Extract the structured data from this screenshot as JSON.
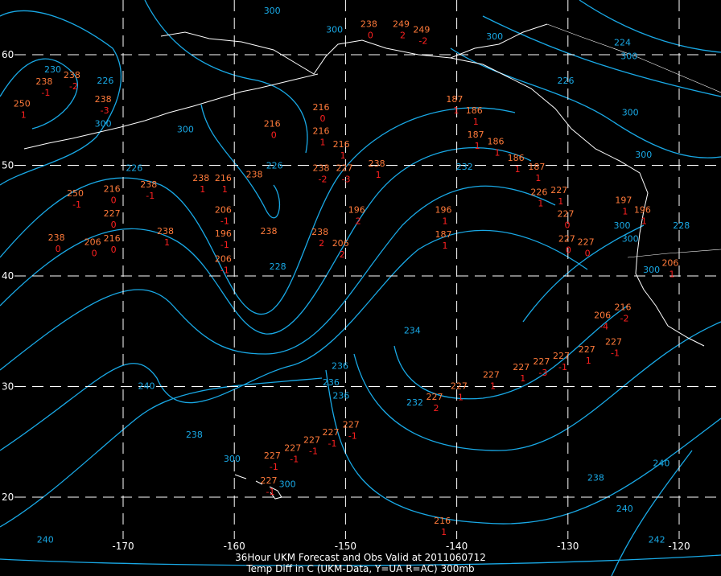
{
  "caption": {
    "line1": "36Hour UKM Forecast and Obs Valid at 2011060712",
    "line2": "Temp Diff in C (UKM-Data, Y=UA R=AC) 300mb"
  },
  "colors": {
    "background": "#000000",
    "contours": "#19a9e6",
    "obs_temp": "#ff7a3a",
    "obs_diff": "#ff2020",
    "coast": "#ffffff"
  },
  "lon_labels": [
    {
      "lon": -170,
      "text": "-170"
    },
    {
      "lon": -160,
      "text": "-160"
    },
    {
      "lon": -150,
      "text": "-150"
    },
    {
      "lon": -140,
      "text": "-140"
    },
    {
      "lon": -130,
      "text": "-130"
    },
    {
      "lon": -120,
      "text": "-120"
    }
  ],
  "lat_labels": [
    {
      "lat": 60,
      "text": "60"
    },
    {
      "lat": 50,
      "text": "50"
    },
    {
      "lat": 40,
      "text": "40"
    },
    {
      "lat": 30,
      "text": "30"
    },
    {
      "lat": 20,
      "text": "20"
    }
  ],
  "contour_labels": [
    {
      "lon": -175.9,
      "lat": 58.4,
      "text": "230"
    },
    {
      "lon": -171.6,
      "lat": 57.4,
      "text": "226"
    },
    {
      "lon": -171.8,
      "lat": 54.8,
      "text": "300"
    },
    {
      "lon": -164.4,
      "lat": 53.0,
      "text": "300"
    },
    {
      "lon": -169.0,
      "lat": 49.5,
      "text": "226"
    },
    {
      "lon": -156.6,
      "lat": 49.7,
      "text": "226"
    },
    {
      "lon": -156.1,
      "lat": 40.6,
      "text": "228"
    },
    {
      "lon": -139.3,
      "lat": 49.6,
      "text": "232"
    },
    {
      "lon": -144.0,
      "lat": 34.8,
      "text": "234"
    },
    {
      "lon": -150.5,
      "lat": 31.6,
      "text": "236"
    },
    {
      "lon": -151.3,
      "lat": 30.1,
      "text": "236"
    },
    {
      "lon": -150.4,
      "lat": 28.9,
      "text": "236"
    },
    {
      "lon": -142.9,
      "lat": 28.3,
      "text": "232"
    },
    {
      "lon": -167.9,
      "lat": 29.8,
      "text": "240"
    },
    {
      "lon": -163.6,
      "lat": 25.4,
      "text": "238"
    },
    {
      "lon": -127.5,
      "lat": 21.5,
      "text": "238"
    },
    {
      "lon": -124.9,
      "lat": 18.7,
      "text": "240"
    },
    {
      "lon": -177.0,
      "lat": 15.9,
      "text": "240"
    },
    {
      "lon": -121.8,
      "lat": 15.9,
      "text": "242"
    },
    {
      "lon": -121.6,
      "lat": 22.8,
      "text": "240"
    },
    {
      "lon": -119.8,
      "lat": 44.3,
      "text": "228"
    },
    {
      "lon": -160.2,
      "lat": 23.2,
      "text": "300"
    },
    {
      "lon": -156.1,
      "lat": 20.9,
      "text": "300"
    },
    {
      "lon": -151.0,
      "lat": 62.0,
      "text": "300"
    },
    {
      "lon": -136.6,
      "lat": 61.4,
      "text": "300"
    },
    {
      "lon": -124.5,
      "lat": 59.6,
      "text": "300"
    },
    {
      "lon": -124.4,
      "lat": 54.5,
      "text": "300"
    },
    {
      "lon": -123.2,
      "lat": 50.7,
      "text": "300"
    },
    {
      "lon": -124.7,
      "lat": 45.6,
      "text": "300"
    },
    {
      "lon": -124.4,
      "lat": 43.1,
      "text": "300"
    },
    {
      "lon": -121.4,
      "lat": 40.3,
      "text": "300"
    },
    {
      "lon": -125.1,
      "lat": 60.4,
      "text": "224"
    },
    {
      "lon": -130.2,
      "lat": 57.4,
      "text": "226"
    },
    {
      "lon": -156.6,
      "lat": 63.7,
      "text": "300"
    }
  ],
  "observations": [
    {
      "lon": -177.1,
      "lat": 57.3,
      "temp": "238",
      "diff": "-1"
    },
    {
      "lon": -174.6,
      "lat": 57.9,
      "temp": "238",
      "diff": "-2"
    },
    {
      "lon": -171.8,
      "lat": 55.7,
      "temp": "238",
      "diff": "-3"
    },
    {
      "lon": -179.1,
      "lat": 55.3,
      "temp": "250",
      "diff": "1"
    },
    {
      "lon": -163.0,
      "lat": 48.6,
      "temp": "238",
      "diff": "1"
    },
    {
      "lon": -161.0,
      "lat": 48.6,
      "temp": "216",
      "diff": "1"
    },
    {
      "lon": -158.2,
      "lat": 48.9,
      "temp": "238",
      "diff": ""
    },
    {
      "lon": -174.3,
      "lat": 47.2,
      "temp": "250",
      "diff": "-1"
    },
    {
      "lon": -171.0,
      "lat": 47.6,
      "temp": "216",
      "diff": "0"
    },
    {
      "lon": -171.0,
      "lat": 45.6,
      "temp": "227",
      "diff": "0"
    },
    {
      "lon": -176.0,
      "lat": 43.2,
      "temp": "238",
      "diff": "0"
    },
    {
      "lon": -171.0,
      "lat": 43.8,
      "temp": "216",
      "diff": "0"
    },
    {
      "lon": -171.0,
      "lat": 42.8,
      "temp": "206",
      "diff": "0"
    },
    {
      "lon": -167.7,
      "lat": 48.0,
      "temp": "238",
      "diff": "-1"
    },
    {
      "lon": -166.2,
      "lat": 43.8,
      "temp": "238",
      "diff": "1"
    },
    {
      "lon": -161.0,
      "lat": 45.7,
      "temp": "206",
      "diff": "-1"
    },
    {
      "lon": -161.0,
      "lat": 43.8,
      "temp": "196",
      "diff": "-1"
    },
    {
      "lon": -161.0,
      "lat": 42.8,
      "temp": "206",
      "diff": "-1"
    },
    {
      "lon": -156.9,
      "lat": 43.8,
      "temp": "238",
      "diff": ""
    },
    {
      "lon": -152.3,
      "lat": 43.7,
      "temp": "238",
      "diff": "2"
    },
    {
      "lon": -151.1,
      "lat": 42.7,
      "temp": "206",
      "diff": "2"
    },
    {
      "lon": -149.0,
      "lat": 45.7,
      "temp": "196",
      "diff": "2"
    },
    {
      "lon": -152.2,
      "lat": 49.5,
      "temp": "238",
      "diff": "-2"
    },
    {
      "lon": -150.1,
      "lat": 49.5,
      "temp": "227",
      "diff": "-3"
    },
    {
      "lon": -147.2,
      "lat": 49.9,
      "temp": "238",
      "diff": "1"
    },
    {
      "lon": -141.2,
      "lat": 45.7,
      "temp": "196",
      "diff": "1"
    },
    {
      "lon": -141.2,
      "lat": 43.7,
      "temp": "187",
      "diff": "1"
    },
    {
      "lon": -156.6,
      "lat": 53.5,
      "temp": "216",
      "diff": "0"
    },
    {
      "lon": -152.2,
      "lat": 55.0,
      "temp": "216",
      "diff": "0"
    },
    {
      "lon": -152.2,
      "lat": 53.7,
      "temp": "216",
      "diff": "1"
    },
    {
      "lon": -151.9,
      "lat": 51.2,
      "temp": "216",
      "diff": "1"
    },
    {
      "lon": -147.9,
      "lat": 62.5,
      "temp": "238",
      "diff": "0"
    },
    {
      "lon": -145.0,
      "lat": 62.5,
      "temp": "249",
      "diff": "2"
    },
    {
      "lon": -143.6,
      "lat": 62.0,
      "temp": "249",
      "diff": "-2"
    },
    {
      "lon": -140.2,
      "lat": 55.7,
      "temp": "187",
      "diff": "1"
    },
    {
      "lon": -139.3,
      "lat": 54.7,
      "temp": "186",
      "diff": "1"
    },
    {
      "lon": -138.3,
      "lat": 53.4,
      "temp": "187",
      "diff": "1"
    },
    {
      "lon": -136.5,
      "lat": 51.9,
      "temp": "186",
      "diff": "1"
    },
    {
      "lon": -134.9,
      "lat": 50.4,
      "temp": "186",
      "diff": "1"
    },
    {
      "lon": -133.9,
      "lat": 49.6,
      "temp": "187",
      "diff": "1"
    },
    {
      "lon": -132.6,
      "lat": 48.4,
      "temp": "226",
      "diff": "1"
    },
    {
      "lon": -132.1,
      "lat": 47.5,
      "temp": "227",
      "diff": "1"
    },
    {
      "lon": -130.2,
      "lat": 45.8,
      "temp": "227",
      "diff": "0"
    },
    {
      "lon": -130.1,
      "lat": 44.4,
      "temp": "227",
      "diff": "0"
    },
    {
      "lon": -128.6,
      "lat": 42.8,
      "temp": "227",
      "diff": "0"
    },
    {
      "lon": -125.0,
      "lat": 46.6,
      "temp": "197",
      "diff": "1"
    },
    {
      "lon": -123.3,
      "lat": 45.7,
      "temp": "196",
      "diff": "1"
    },
    {
      "lon": -120.8,
      "lat": 40.9,
      "temp": "206",
      "diff": "1"
    },
    {
      "lon": -126.9,
      "lat": 36.2,
      "temp": "206",
      "diff": "-4"
    },
    {
      "lon": -125.5,
      "lat": 36.9,
      "temp": "216",
      "diff": "-2"
    },
    {
      "lon": -125.9,
      "lat": 33.8,
      "temp": "227",
      "diff": "-1"
    },
    {
      "lon": -128.3,
      "lat": 33.1,
      "temp": "227",
      "diff": "1"
    },
    {
      "lon": -136.9,
      "lat": 30.8,
      "temp": "227",
      "diff": "1"
    },
    {
      "lon": -134.2,
      "lat": 31.5,
      "temp": "227",
      "diff": "1"
    },
    {
      "lon": -132.6,
      "lat": 32.0,
      "temp": "227",
      "diff": "-3"
    },
    {
      "lon": -130.6,
      "lat": 32.5,
      "temp": "227",
      "diff": "-1"
    },
    {
      "lon": -142.0,
      "lat": 28.8,
      "temp": "227",
      "diff": "2"
    },
    {
      "lon": -139.8,
      "lat": 29.8,
      "temp": "227",
      "diff": "1"
    },
    {
      "lon": -149.5,
      "lat": 26.3,
      "temp": "227",
      "diff": "-1"
    },
    {
      "lon": -150.9,
      "lat": 25.6,
      "temp": "227",
      "diff": "-1"
    },
    {
      "lon": -152.6,
      "lat": 24.9,
      "temp": "227",
      "diff": "-1"
    },
    {
      "lon": -154.1,
      "lat": 24.2,
      "temp": "227",
      "diff": "-1"
    },
    {
      "lon": -155.5,
      "lat": 23.5,
      "temp": "227",
      "diff": "-1"
    },
    {
      "lon": -156.9,
      "lat": 21.9,
      "temp": "227",
      "diff": "-1"
    },
    {
      "lon": -141.3,
      "lat": 17.4,
      "temp": "216",
      "diff": "1"
    }
  ]
}
